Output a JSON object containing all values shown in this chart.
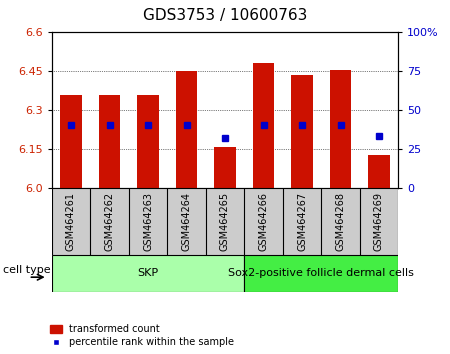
{
  "title": "GDS3753 / 10600763",
  "samples": [
    "GSM464261",
    "GSM464262",
    "GSM464263",
    "GSM464264",
    "GSM464265",
    "GSM464266",
    "GSM464267",
    "GSM464268",
    "GSM464269"
  ],
  "bar_tops": [
    6.355,
    6.355,
    6.355,
    6.45,
    6.155,
    6.48,
    6.435,
    6.455,
    6.125
  ],
  "bar_base": 6.0,
  "blue_pct": [
    40,
    40,
    40,
    40,
    32,
    40,
    40,
    40,
    33
  ],
  "bar_color": "#cc1100",
  "blue_color": "#0000cc",
  "ylim": [
    6.0,
    6.6
  ],
  "yticks_left": [
    6.0,
    6.15,
    6.3,
    6.45,
    6.6
  ],
  "yticks_right": [
    0,
    25,
    50,
    75,
    100
  ],
  "cell_type_label": "cell type",
  "legend_bar_label": "transformed count",
  "legend_dot_label": "percentile rank within the sample",
  "title_fontsize": 11,
  "tick_fontsize": 8,
  "sample_fontsize": 7,
  "group_fontsize": 8,
  "bar_width": 0.55,
  "background_color": "#ffffff",
  "xlabel_bg": "#cccccc",
  "skp_color": "#aaffaa",
  "sox2_color": "#44ee44",
  "skp_count": 5,
  "sox2_count": 4
}
